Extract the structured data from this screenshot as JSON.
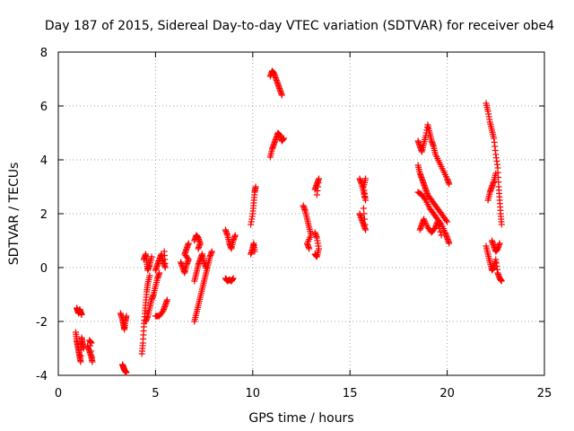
{
  "chart_data": {
    "type": "scatter",
    "title": "Day 187 of 2015, Sidereal Day-to-day VTEC variation (SDTVAR) for receiver obe4",
    "xlabel": "GPS time / hours",
    "ylabel": "SDTVAR / TECUs",
    "xlim": [
      0,
      25
    ],
    "ylim": [
      -4,
      8
    ],
    "x_ticks": [
      0,
      5,
      10,
      15,
      20,
      25
    ],
    "x_tick_labels": [
      "0",
      "5",
      "10",
      "15",
      "20",
      "25"
    ],
    "y_ticks": [
      -4,
      -2,
      0,
      2,
      4,
      6,
      8
    ],
    "y_tick_labels": [
      "-4",
      "-2",
      "0",
      "2",
      "4",
      "6",
      "8"
    ],
    "grid": true,
    "marker": "plus",
    "color": "#ff0000",
    "series": [
      {
        "name": "obe4",
        "segments": [
          [
            [
              0.95,
              -1.5
            ],
            [
              1.0,
              -1.6
            ],
            [
              1.05,
              -1.7
            ],
            [
              1.1,
              -1.55
            ],
            [
              1.15,
              -1.65
            ],
            [
              1.2,
              -1.75
            ]
          ],
          [
            [
              0.9,
              -2.4
            ],
            [
              0.95,
              -2.7
            ],
            [
              1.0,
              -2.9
            ],
            [
              1.05,
              -3.1
            ],
            [
              1.1,
              -3.3
            ],
            [
              1.15,
              -3.5
            ],
            [
              1.2,
              -2.6
            ],
            [
              1.25,
              -2.8
            ],
            [
              1.3,
              -3.0
            ]
          ],
          [
            [
              1.5,
              -2.9
            ],
            [
              1.6,
              -3.1
            ],
            [
              1.7,
              -3.3
            ],
            [
              1.75,
              -3.5
            ],
            [
              1.6,
              -2.7
            ],
            [
              1.7,
              -2.8
            ]
          ],
          [
            [
              3.2,
              -1.7
            ],
            [
              3.3,
              -1.9
            ],
            [
              3.35,
              -2.1
            ],
            [
              3.4,
              -2.3
            ],
            [
              3.45,
              -2.0
            ],
            [
              3.5,
              -1.8
            ]
          ],
          [
            [
              3.3,
              -3.6
            ],
            [
              3.35,
              -3.7
            ],
            [
              3.4,
              -3.8
            ],
            [
              3.45,
              -3.85
            ],
            [
              3.5,
              -3.9
            ]
          ],
          [
            [
              4.3,
              -3.2
            ],
            [
              4.35,
              -2.8
            ],
            [
              4.4,
              -2.2
            ],
            [
              4.45,
              -1.7
            ],
            [
              4.5,
              -1.3
            ],
            [
              4.55,
              -0.9
            ],
            [
              4.6,
              -0.6
            ],
            [
              4.7,
              -0.3
            ]
          ],
          [
            [
              4.5,
              -2.0
            ],
            [
              4.6,
              -1.8
            ],
            [
              4.7,
              -1.5
            ],
            [
              4.8,
              -1.2
            ],
            [
              4.9,
              -1.0
            ],
            [
              5.0,
              -0.7
            ],
            [
              5.1,
              -0.4
            ],
            [
              5.2,
              -0.2
            ]
          ],
          [
            [
              4.4,
              0.3
            ],
            [
              4.5,
              0.5
            ],
            [
              4.55,
              0.2
            ],
            [
              4.6,
              -0.1
            ],
            [
              4.7,
              0.1
            ],
            [
              4.8,
              0.4
            ]
          ],
          [
            [
              5.0,
              -0.1
            ],
            [
              5.1,
              0.1
            ],
            [
              5.2,
              0.3
            ],
            [
              5.3,
              0.5
            ],
            [
              5.4,
              0.2
            ],
            [
              5.5,
              0.0
            ],
            [
              5.45,
              0.6
            ]
          ],
          [
            [
              5.0,
              -1.8
            ],
            [
              5.2,
              -1.8
            ],
            [
              5.4,
              -1.6
            ],
            [
              5.5,
              -1.4
            ],
            [
              5.6,
              -1.2
            ]
          ],
          [
            [
              6.3,
              0.2
            ],
            [
              6.4,
              0.0
            ],
            [
              6.5,
              -0.2
            ],
            [
              6.6,
              0.1
            ],
            [
              6.7,
              0.3
            ],
            [
              6.5,
              0.5
            ],
            [
              6.6,
              0.7
            ],
            [
              6.7,
              0.9
            ]
          ],
          [
            [
              7.0,
              1.0
            ],
            [
              7.1,
              1.2
            ],
            [
              7.2,
              1.1
            ],
            [
              7.3,
              0.9
            ],
            [
              7.2,
              0.7
            ]
          ],
          [
            [
              7.0,
              -2.0
            ],
            [
              7.1,
              -1.7
            ],
            [
              7.2,
              -1.4
            ],
            [
              7.3,
              -1.1
            ],
            [
              7.4,
              -0.8
            ],
            [
              7.5,
              -0.5
            ],
            [
              7.6,
              -0.2
            ],
            [
              7.7,
              0.1
            ],
            [
              7.8,
              0.4
            ],
            [
              7.9,
              0.6
            ]
          ],
          [
            [
              7.0,
              -0.5
            ],
            [
              7.1,
              -0.2
            ],
            [
              7.2,
              0.1
            ],
            [
              7.3,
              0.3
            ],
            [
              7.4,
              0.5
            ],
            [
              7.5,
              0.2
            ],
            [
              7.6,
              0.0
            ]
          ],
          [
            [
              8.6,
              1.4
            ],
            [
              8.7,
              1.2
            ],
            [
              8.8,
              0.9
            ],
            [
              8.9,
              0.7
            ],
            [
              9.0,
              1.0
            ],
            [
              9.1,
              1.2
            ]
          ],
          [
            [
              8.6,
              -0.4
            ],
            [
              8.7,
              -0.5
            ],
            [
              8.8,
              -0.45
            ],
            [
              8.9,
              -0.5
            ],
            [
              9.0,
              -0.4
            ]
          ],
          [
            [
              9.9,
              1.6
            ],
            [
              10.0,
              2.0
            ],
            [
              10.05,
              2.4
            ],
            [
              10.1,
              2.8
            ],
            [
              10.15,
              3.0
            ]
          ],
          [
            [
              9.9,
              0.5
            ],
            [
              10.0,
              0.7
            ],
            [
              10.05,
              0.9
            ],
            [
              10.1,
              0.6
            ]
          ],
          [
            [
              10.9,
              4.1
            ],
            [
              11.0,
              4.4
            ],
            [
              11.1,
              4.6
            ],
            [
              11.2,
              4.8
            ],
            [
              11.3,
              5.0
            ],
            [
              11.4,
              4.9
            ],
            [
              11.5,
              4.7
            ],
            [
              11.6,
              4.8
            ]
          ],
          [
            [
              10.9,
              7.1
            ],
            [
              11.0,
              7.3
            ],
            [
              11.1,
              7.2
            ],
            [
              11.2,
              7.0
            ],
            [
              11.3,
              6.8
            ],
            [
              11.4,
              6.6
            ],
            [
              11.5,
              6.4
            ]
          ],
          [
            [
              12.6,
              2.3
            ],
            [
              12.7,
              2.1
            ],
            [
              12.8,
              1.8
            ],
            [
              12.9,
              1.5
            ],
            [
              13.0,
              1.2
            ],
            [
              12.8,
              0.9
            ],
            [
              12.9,
              0.7
            ]
          ],
          [
            [
              13.2,
              1.3
            ],
            [
              13.3,
              1.1
            ],
            [
              13.4,
              0.7
            ],
            [
              13.3,
              0.4
            ],
            [
              13.2,
              0.5
            ]
          ],
          [
            [
              13.2,
              2.9
            ],
            [
              13.3,
              3.1
            ],
            [
              13.4,
              3.3
            ],
            [
              13.3,
              2.7
            ]
          ],
          [
            [
              15.5,
              3.3
            ],
            [
              15.6,
              3.1
            ],
            [
              15.7,
              2.8
            ],
            [
              15.8,
              2.5
            ],
            [
              15.7,
              3.0
            ],
            [
              15.8,
              3.3
            ]
          ],
          [
            [
              15.5,
              2.0
            ],
            [
              15.6,
              1.8
            ],
            [
              15.7,
              1.6
            ],
            [
              15.8,
              1.4
            ],
            [
              15.7,
              2.2
            ]
          ],
          [
            [
              18.5,
              4.7
            ],
            [
              18.6,
              4.5
            ],
            [
              18.7,
              4.3
            ],
            [
              18.8,
              4.6
            ],
            [
              18.9,
              4.9
            ],
            [
              19.0,
              5.3
            ],
            [
              19.1,
              5.0
            ],
            [
              19.2,
              4.7
            ],
            [
              19.3,
              4.5
            ],
            [
              19.4,
              4.2
            ],
            [
              19.6,
              3.9
            ],
            [
              19.8,
              3.6
            ],
            [
              20.0,
              3.3
            ],
            [
              20.1,
              3.1
            ]
          ],
          [
            [
              18.5,
              3.8
            ],
            [
              18.6,
              3.5
            ],
            [
              18.7,
              3.3
            ],
            [
              18.8,
              3.1
            ],
            [
              18.9,
              2.9
            ],
            [
              19.0,
              2.7
            ],
            [
              19.2,
              2.5
            ],
            [
              19.4,
              2.3
            ],
            [
              19.6,
              2.1
            ],
            [
              19.8,
              1.9
            ],
            [
              20.0,
              1.7
            ]
          ],
          [
            [
              18.5,
              2.8
            ],
            [
              18.7,
              2.7
            ],
            [
              18.9,
              2.5
            ],
            [
              19.1,
              2.2
            ],
            [
              19.3,
              2.0
            ],
            [
              19.5,
              1.8
            ],
            [
              19.7,
              1.6
            ],
            [
              19.9,
              1.3
            ],
            [
              20.0,
              1.1
            ],
            [
              20.1,
              0.9
            ]
          ],
          [
            [
              18.6,
              1.4
            ],
            [
              18.7,
              1.6
            ],
            [
              18.8,
              1.8
            ],
            [
              19.0,
              1.5
            ],
            [
              19.2,
              1.3
            ],
            [
              19.4,
              1.5
            ],
            [
              19.5,
              1.7
            ],
            [
              19.7,
              1.2
            ]
          ],
          [
            [
              22.0,
              6.1
            ],
            [
              22.1,
              5.8
            ],
            [
              22.2,
              5.4
            ],
            [
              22.3,
              5.1
            ],
            [
              22.4,
              4.8
            ],
            [
              22.5,
              4.2
            ],
            [
              22.6,
              3.7
            ],
            [
              22.65,
              3.0
            ],
            [
              22.7,
              2.5
            ],
            [
              22.75,
              2.0
            ],
            [
              22.8,
              1.6
            ]
          ],
          [
            [
              22.1,
              2.5
            ],
            [
              22.2,
              2.8
            ],
            [
              22.3,
              3.0
            ],
            [
              22.4,
              3.2
            ],
            [
              22.5,
              3.5
            ]
          ],
          [
            [
              22.0,
              0.8
            ],
            [
              22.1,
              0.5
            ],
            [
              22.2,
              0.2
            ],
            [
              22.3,
              -0.1
            ],
            [
              22.4,
              0.0
            ],
            [
              22.5,
              0.3
            ],
            [
              22.6,
              -0.2
            ],
            [
              22.7,
              -0.4
            ],
            [
              22.8,
              -0.5
            ]
          ],
          [
            [
              22.3,
              1.0
            ],
            [
              22.4,
              0.8
            ],
            [
              22.5,
              0.6
            ],
            [
              22.6,
              0.7
            ],
            [
              22.7,
              0.9
            ]
          ]
        ]
      }
    ]
  }
}
